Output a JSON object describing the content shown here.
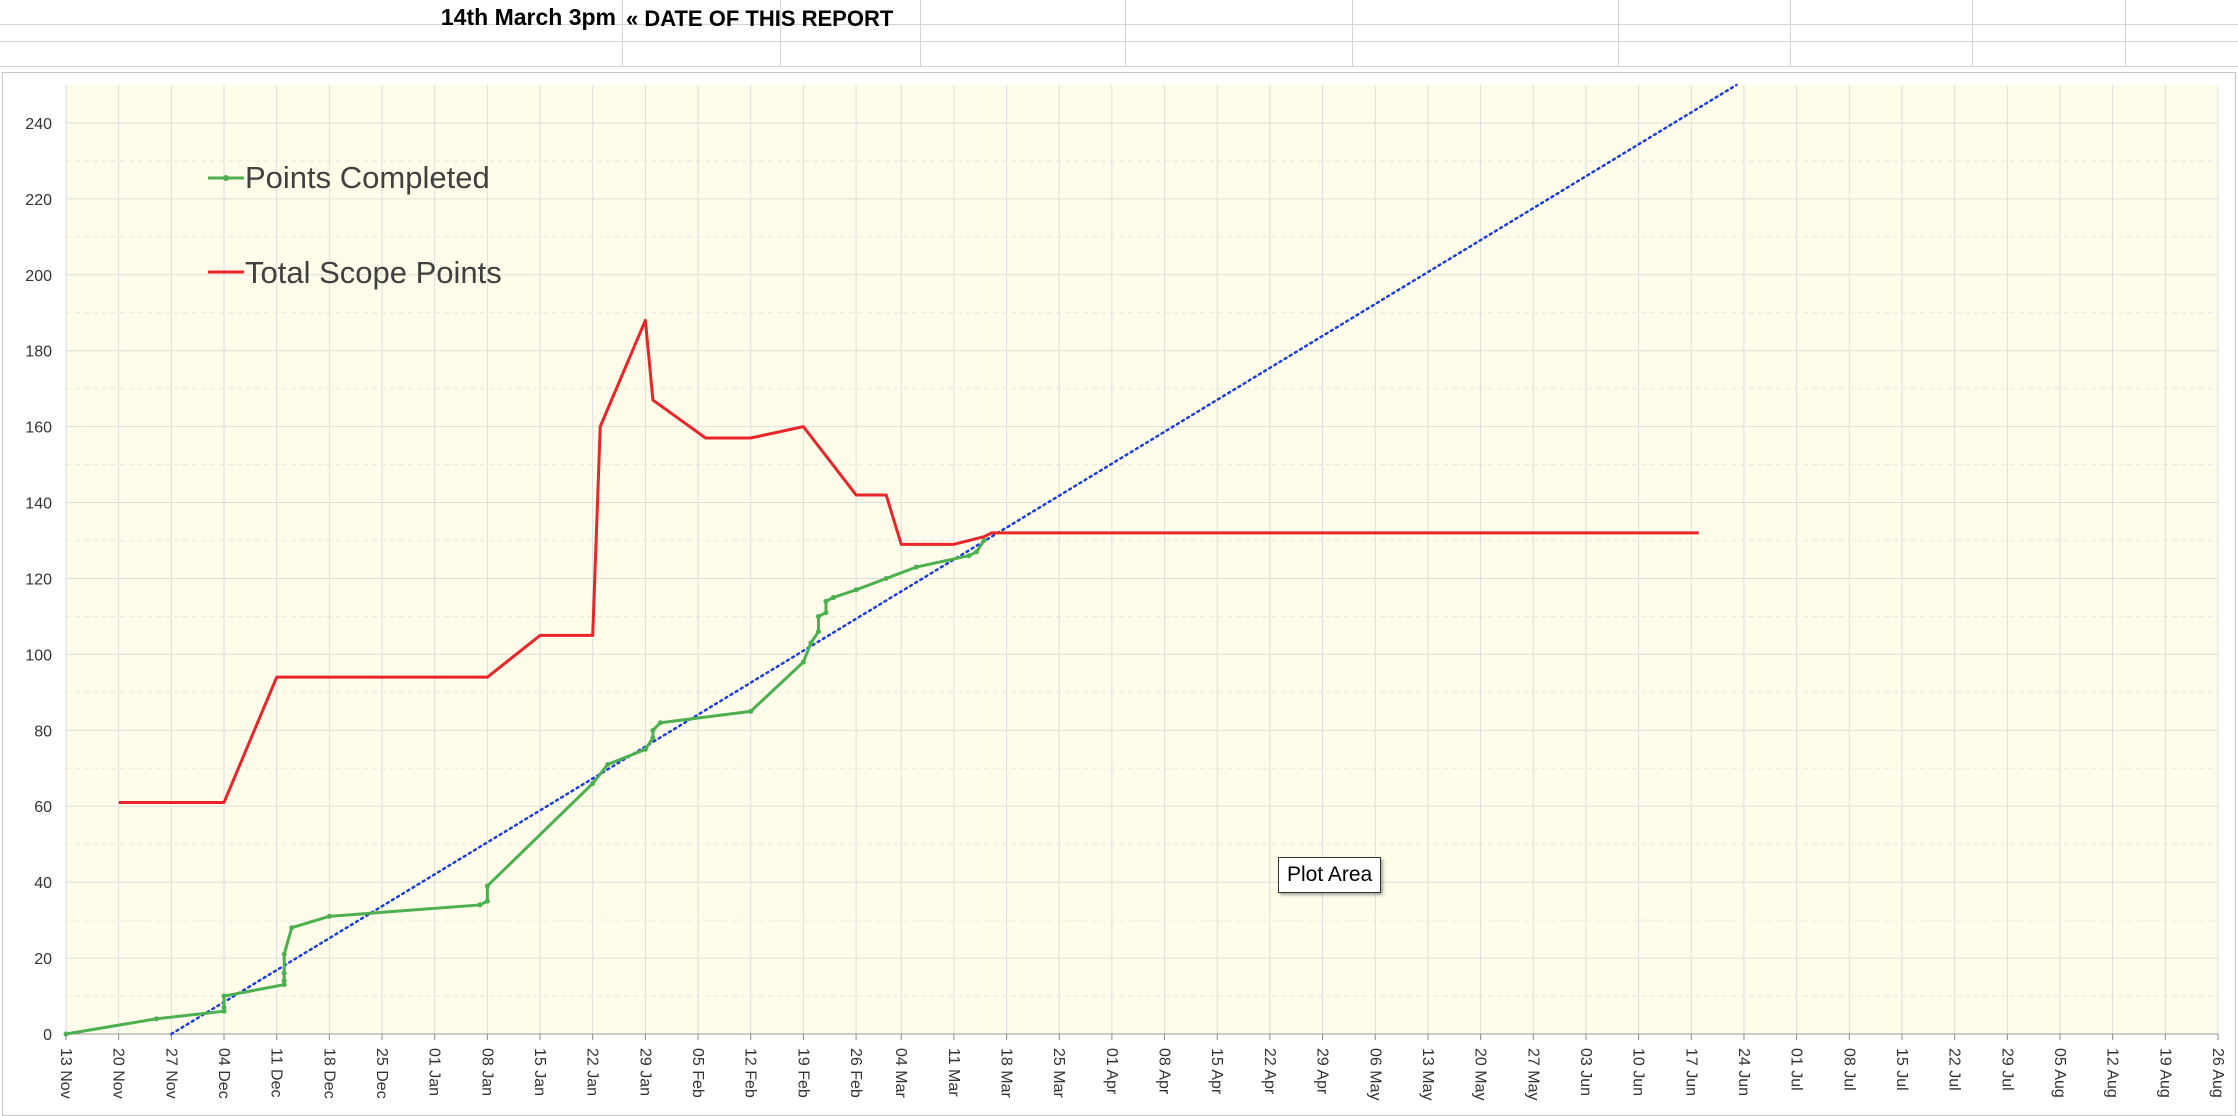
{
  "sheet": {
    "report_date": "14th March 3pm",
    "report_label": "« DATE OF THIS REPORT"
  },
  "tooltip": "Plot Area",
  "colors": {
    "plot_bg": "#fffde9",
    "completed": "#4caf50",
    "scope": "#e8262a",
    "trend": "#1a3fd8",
    "grid": "#dddddd"
  },
  "chart_data": {
    "type": "line",
    "title": "",
    "xlabel": "",
    "ylabel": "",
    "x_ticks": [
      "13 Nov",
      "20 Nov",
      "27 Nov",
      "04 Dec",
      "11 Dec",
      "18 Dec",
      "25 Dec",
      "01 Jan",
      "08 Jan",
      "15 Jan",
      "22 Jan",
      "29 Jan",
      "05 Feb",
      "12 Feb",
      "19 Feb",
      "26 Feb",
      "04 Mar",
      "11 Mar",
      "18 Mar",
      "25 Mar",
      "01 Apr",
      "08 Apr",
      "15 Apr",
      "22 Apr",
      "29 Apr",
      "06 May",
      "13 May",
      "20 May",
      "27 May",
      "03 Jun",
      "10 Jun",
      "17 Jun",
      "24 Jun",
      "01 Jul",
      "08 Jul",
      "15 Jul",
      "22 Jul",
      "29 Jul",
      "05 Aug",
      "12 Aug",
      "19 Aug",
      "26 Aug"
    ],
    "ylim": [
      0,
      250
    ],
    "y_ticks": [
      0,
      20,
      40,
      60,
      80,
      100,
      120,
      140,
      160,
      180,
      200,
      220,
      240
    ],
    "grid": true,
    "legend_position": "top-left",
    "series": [
      {
        "name": "Points Completed",
        "marker": "small dot",
        "x": [
          "13 Nov",
          "25 Nov",
          "04 Dec",
          "04 Dec",
          "04 Dec",
          "12 Dec",
          "12 Dec",
          "12 Dec",
          "12 Dec",
          "13 Dec",
          "18 Dec",
          "07 Jan",
          "08 Jan",
          "08 Jan",
          "22 Jan",
          "24 Jan",
          "29 Jan",
          "30 Jan",
          "30 Jan",
          "31 Jan",
          "12 Feb",
          "19 Feb",
          "20 Feb",
          "21 Feb",
          "21 Feb",
          "22 Feb",
          "22 Feb",
          "23 Feb",
          "23 Feb",
          "26 Feb",
          "02 Mar",
          "06 Mar",
          "13 Mar",
          "14 Mar",
          "15 Mar"
        ],
        "values": [
          0,
          4,
          6,
          7,
          10,
          13,
          14,
          16,
          21,
          28,
          31,
          34,
          35,
          39,
          66,
          71,
          75,
          78,
          80,
          82,
          85,
          98,
          103,
          106,
          110,
          111,
          114,
          115,
          115,
          117,
          120,
          123,
          126,
          127,
          130
        ]
      },
      {
        "name": "Total Scope Points",
        "x": [
          "20 Nov",
          "04 Dec",
          "11 Dec",
          "08 Jan",
          "15 Jan",
          "22 Jan",
          "23 Jan",
          "29 Jan",
          "30 Jan",
          "06 Feb",
          "12 Feb",
          "19 Feb",
          "26 Feb",
          "02 Mar",
          "04 Mar",
          "11 Mar",
          "15 Mar",
          "16 Mar",
          "18 Jun"
        ],
        "values": [
          61,
          61,
          94,
          94,
          105,
          105,
          160,
          188,
          167,
          157,
          157,
          160,
          142,
          142,
          129,
          129,
          131,
          132,
          132
        ]
      }
    ],
    "trend_line": {
      "style": "dotted",
      "x": [
        "27 Nov",
        "23 Jun"
      ],
      "values": [
        0,
        250
      ]
    }
  }
}
